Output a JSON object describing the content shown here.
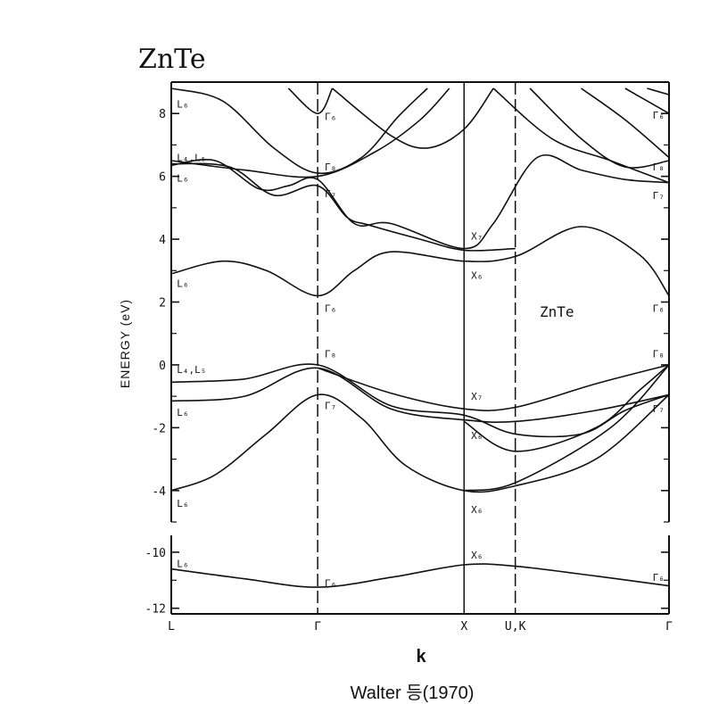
{
  "header": {
    "title": "ZnTe"
  },
  "caption": "Walter 등(1970)",
  "chart_data": {
    "type": "line",
    "title": "ZnTe",
    "panel_label": "ZnTe",
    "xlabel": "k",
    "ylabel": "ENERGY (eV)",
    "x_points": [
      {
        "label": "L",
        "pos": 0.0
      },
      {
        "label": "Γ",
        "pos": 1.0
      },
      {
        "label": "X",
        "pos": 2.0
      },
      {
        "label": "U,K",
        "pos": 2.35
      },
      {
        "label": "Γ",
        "pos": 3.4
      }
    ],
    "upper_panel": {
      "ylim": [
        -5,
        9
      ],
      "yticks": [
        -4,
        -2,
        0,
        2,
        4,
        6,
        8
      ],
      "ytick_labels": [
        "-4",
        "-2",
        "0",
        "2",
        "4",
        "6",
        "8"
      ]
    },
    "lower_panel": {
      "ylim": [
        -12.2,
        -9.4
      ],
      "yticks": [
        -12,
        -10
      ],
      "ytick_labels": [
        "-12",
        "-10"
      ]
    },
    "series": [
      {
        "values": [
          [
            0,
            -10.6
          ],
          [
            0.5,
            -10.95
          ],
          [
            1.0,
            -11.25
          ],
          [
            1.5,
            -10.9
          ],
          [
            2.0,
            -10.45
          ],
          [
            2.35,
            -10.5
          ],
          [
            2.9,
            -10.85
          ],
          [
            3.4,
            -11.2
          ]
        ]
      },
      {
        "values": [
          [
            0,
            -4.0
          ],
          [
            0.3,
            -3.5
          ],
          [
            0.65,
            -2.2
          ],
          [
            1.0,
            -0.95
          ],
          [
            1.3,
            -1.7
          ],
          [
            1.6,
            -3.2
          ],
          [
            2.0,
            -4.0
          ],
          [
            2.35,
            -3.85
          ],
          [
            2.9,
            -3.0
          ],
          [
            3.4,
            -0.95
          ]
        ]
      },
      {
        "values": [
          [
            0,
            -1.15
          ],
          [
            0.5,
            -1.0
          ],
          [
            1.0,
            -0.1
          ],
          [
            1.5,
            -1.4
          ],
          [
            2.0,
            -1.75
          ],
          [
            2.35,
            -1.8
          ],
          [
            2.9,
            -1.45
          ],
          [
            3.4,
            -0.95
          ]
        ]
      },
      {
        "values": [
          [
            0,
            -0.55
          ],
          [
            0.5,
            -0.45
          ],
          [
            1.0,
            0.0
          ],
          [
            1.5,
            -1.3
          ],
          [
            2.0,
            -1.6
          ],
          [
            2.35,
            -2.2
          ],
          [
            2.8,
            -2.2
          ],
          [
            3.1,
            -1.45
          ],
          [
            3.4,
            -0.95
          ]
        ]
      },
      {
        "values": [
          [
            1.0,
            -0.1
          ],
          [
            1.5,
            -0.9
          ],
          [
            2.0,
            -1.4
          ],
          [
            2.35,
            -1.35
          ],
          [
            2.9,
            -0.6
          ],
          [
            3.4,
            0.0
          ]
        ]
      },
      {
        "values": [
          [
            2.0,
            -1.8
          ],
          [
            2.35,
            -2.75
          ],
          [
            2.9,
            -2.0
          ],
          [
            3.2,
            -0.8
          ],
          [
            3.4,
            0.0
          ]
        ]
      },
      {
        "values": [
          [
            2.0,
            -4.0
          ],
          [
            2.35,
            -3.75
          ],
          [
            3.0,
            -2.0
          ],
          [
            3.4,
            0.0
          ]
        ]
      },
      {
        "values": [
          [
            0,
            2.9
          ],
          [
            0.35,
            3.3
          ],
          [
            0.65,
            3.0
          ],
          [
            1.0,
            2.2
          ],
          [
            1.25,
            3.0
          ],
          [
            1.5,
            3.6
          ],
          [
            2.0,
            3.3
          ],
          [
            2.35,
            3.45
          ],
          [
            2.8,
            4.4
          ],
          [
            3.2,
            3.5
          ],
          [
            3.4,
            2.2
          ]
        ]
      },
      {
        "values": [
          [
            0,
            6.35
          ],
          [
            0.3,
            6.5
          ],
          [
            0.6,
            5.6
          ],
          [
            0.8,
            5.7
          ],
          [
            1.0,
            5.9
          ],
          [
            1.25,
            4.5
          ],
          [
            1.5,
            4.5
          ],
          [
            2.0,
            3.7
          ],
          [
            2.2,
            4.5
          ],
          [
            2.5,
            6.6
          ],
          [
            2.8,
            6.2
          ],
          [
            3.1,
            5.9
          ],
          [
            3.4,
            5.8
          ]
        ]
      },
      {
        "values": [
          [
            0,
            6.4
          ],
          [
            0.4,
            6.3
          ],
          [
            0.7,
            5.4
          ],
          [
            1.0,
            5.7
          ],
          [
            1.2,
            4.7
          ],
          [
            1.35,
            4.45
          ],
          [
            1.7,
            4.0
          ],
          [
            2.0,
            3.65
          ],
          [
            2.35,
            3.7
          ]
        ]
      },
      {
        "values": [
          [
            0,
            6.5
          ],
          [
            0.5,
            6.2
          ],
          [
            1.0,
            6.0
          ],
          [
            1.4,
            6.8
          ],
          [
            1.7,
            7.8
          ],
          [
            1.9,
            8.8
          ]
        ]
      },
      {
        "values": [
          [
            0,
            8.8
          ],
          [
            0.35,
            8.4
          ],
          [
            0.7,
            6.9
          ],
          [
            1.0,
            6.1
          ],
          [
            1.3,
            6.6
          ],
          [
            1.55,
            7.9
          ],
          [
            1.75,
            8.8
          ]
        ]
      },
      {
        "values": [
          [
            0.8,
            8.8
          ],
          [
            1.0,
            8.0
          ],
          [
            1.1,
            8.8
          ]
        ]
      },
      {
        "values": [
          [
            1.1,
            8.8
          ],
          [
            1.5,
            7.3
          ],
          [
            1.75,
            6.9
          ],
          [
            2.0,
            7.5
          ],
          [
            2.2,
            8.8
          ]
        ]
      },
      {
        "values": [
          [
            2.2,
            8.8
          ],
          [
            2.6,
            7.2
          ],
          [
            3.0,
            6.5
          ],
          [
            3.4,
            5.8
          ]
        ]
      },
      {
        "values": [
          [
            2.45,
            8.8
          ],
          [
            2.8,
            7.2
          ],
          [
            3.1,
            6.3
          ],
          [
            3.4,
            6.5
          ]
        ]
      },
      {
        "values": [
          [
            2.8,
            8.8
          ],
          [
            3.1,
            7.8
          ],
          [
            3.4,
            6.6
          ]
        ]
      },
      {
        "values": [
          [
            3.1,
            8.8
          ],
          [
            3.25,
            8.4
          ],
          [
            3.4,
            8.0
          ]
        ]
      },
      {
        "values": [
          [
            3.25,
            8.8
          ],
          [
            3.4,
            8.6
          ]
        ]
      }
    ],
    "annotations": [
      {
        "text": "L₆",
        "x": 0.02,
        "y": 8.3,
        "panel": "upper"
      },
      {
        "text": "L₄,L₅",
        "x": 0.02,
        "y": 6.6,
        "panel": "upper"
      },
      {
        "text": "L₆",
        "x": 0.02,
        "y": 5.95,
        "panel": "upper"
      },
      {
        "text": "L₆",
        "x": 0.02,
        "y": 2.6,
        "panel": "upper"
      },
      {
        "text": "L₄,L₅",
        "x": 0.02,
        "y": -0.15,
        "panel": "upper"
      },
      {
        "text": "L₆",
        "x": 0.02,
        "y": -1.5,
        "panel": "upper"
      },
      {
        "text": "L₆",
        "x": 0.02,
        "y": -4.4,
        "panel": "upper"
      },
      {
        "text": "L₆",
        "x": 0.02,
        "y": -10.4,
        "panel": "lower"
      },
      {
        "text": "Γ₆",
        "x": 1.03,
        "y": 7.9,
        "panel": "upper"
      },
      {
        "text": "Γ₈",
        "x": 1.03,
        "y": 6.3,
        "panel": "upper"
      },
      {
        "text": "Γ₇",
        "x": 1.03,
        "y": 5.45,
        "panel": "upper"
      },
      {
        "text": "Γ₆",
        "x": 1.03,
        "y": 1.8,
        "panel": "upper"
      },
      {
        "text": "Γ₈",
        "x": 1.03,
        "y": 0.35,
        "panel": "upper"
      },
      {
        "text": "Γ₇",
        "x": 1.03,
        "y": -1.3,
        "panel": "upper"
      },
      {
        "text": "Γ₆",
        "x": 1.03,
        "y": -11.1,
        "panel": "lower"
      },
      {
        "text": "X₇",
        "x": 2.03,
        "y": 4.1,
        "panel": "upper"
      },
      {
        "text": "X₆",
        "x": 2.03,
        "y": 2.85,
        "panel": "upper"
      },
      {
        "text": "X₇",
        "x": 2.03,
        "y": -1.0,
        "panel": "upper"
      },
      {
        "text": "X₆",
        "x": 2.03,
        "y": -2.25,
        "panel": "upper"
      },
      {
        "text": "X₆",
        "x": 2.03,
        "y": -4.6,
        "panel": "upper"
      },
      {
        "text": "X₆",
        "x": 2.03,
        "y": -10.1,
        "panel": "lower"
      },
      {
        "text": "Γ₆",
        "x": 3.27,
        "y": 7.95,
        "panel": "upper"
      },
      {
        "text": "Γ₈",
        "x": 3.27,
        "y": 6.3,
        "panel": "upper"
      },
      {
        "text": "Γ₇",
        "x": 3.27,
        "y": 5.4,
        "panel": "upper"
      },
      {
        "text": "Γ₆",
        "x": 3.27,
        "y": 1.8,
        "panel": "upper"
      },
      {
        "text": "Γ₈",
        "x": 3.27,
        "y": 0.35,
        "panel": "upper"
      },
      {
        "text": "Γ₇",
        "x": 3.27,
        "y": -1.4,
        "panel": "upper"
      },
      {
        "text": "Γ₆",
        "x": 3.27,
        "y": -10.9,
        "panel": "lower"
      }
    ],
    "grid": false
  }
}
